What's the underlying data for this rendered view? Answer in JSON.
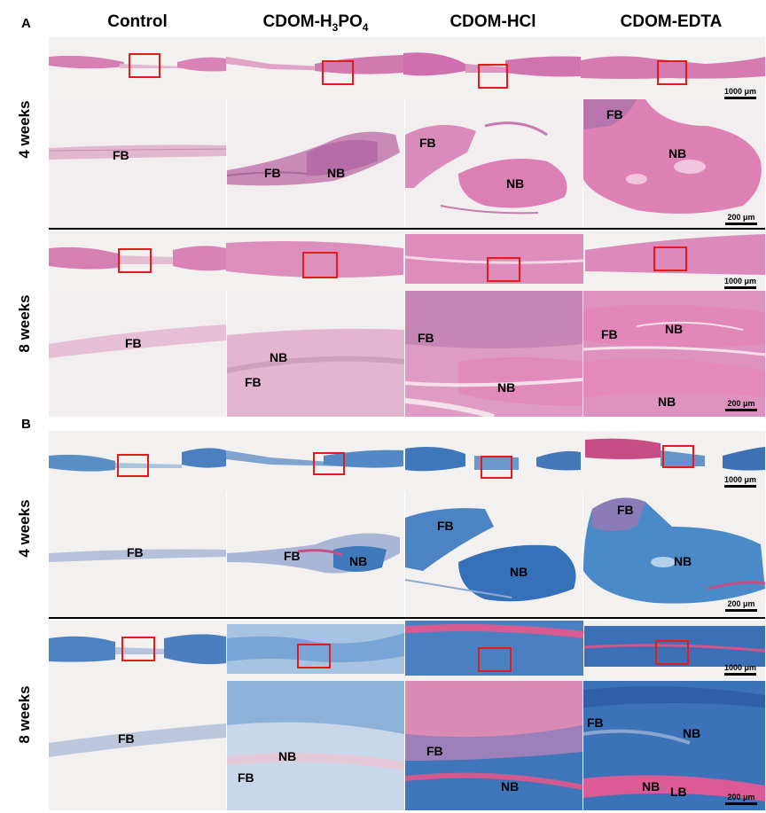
{
  "panels": {
    "a": "A",
    "b": "B"
  },
  "columns": [
    "Control",
    "CDOM-H",
    "3",
    "PO",
    "4",
    "CDOM-HCl",
    "CDOM-EDTA"
  ],
  "rows": {
    "w4": "4 weeks",
    "w8": "8 weeks"
  },
  "scale": {
    "low": "1000 μm",
    "high": "200 μm"
  },
  "labels": {
    "fb": "FB",
    "nb": "NB",
    "lb": "LB"
  },
  "colors": {
    "he_tissue": "#d97fb4",
    "he_dense": "#e48fbb",
    "he_purple": "#b577b2",
    "mt_blue": "#4a89c6",
    "mt_red": "#d64a7f",
    "roi_box": "#e41b1b",
    "background": "#f2f0ef"
  }
}
